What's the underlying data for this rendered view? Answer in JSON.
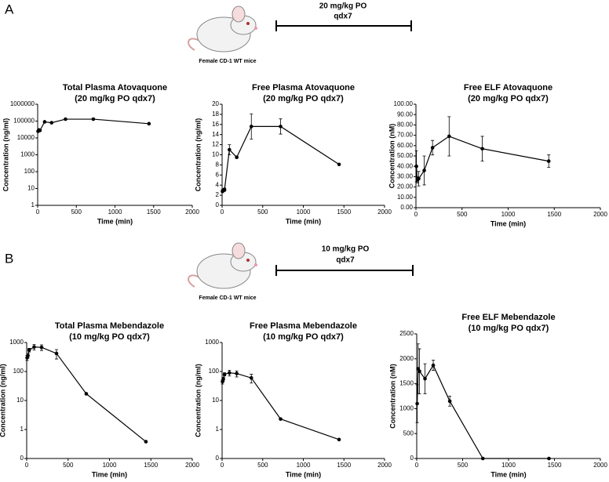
{
  "panels": [
    {
      "label": "A",
      "dose": "20 mg/kg PO",
      "schedule": "qdx7",
      "mouse_caption": "Female CD-1 WT mice"
    },
    {
      "label": "B",
      "dose": "10 mg/kg PO",
      "schedule": "qdx7",
      "mouse_caption": "Female CD-1 WT mice"
    }
  ],
  "chart_data": [
    {
      "type": "line",
      "title": "Total Plasma Atovaquone",
      "subtitle": "(20 mg/kg PO qdx7)",
      "xlabel": "Time (min)",
      "ylabel": "Concentration (ng/ml)",
      "log_y": true,
      "color": "#000000",
      "x": [
        5,
        15,
        30,
        90,
        180,
        360,
        720,
        1440
      ],
      "values": [
        25000,
        30000,
        28000,
        90000,
        80000,
        130000,
        130000,
        70000
      ],
      "xlim": [
        0,
        2000
      ],
      "xticks": [
        0,
        500,
        1000,
        1500,
        2000
      ],
      "ylim": [
        1,
        1000000
      ],
      "yticks": [
        1,
        10,
        100,
        1000,
        10000,
        100000,
        1000000
      ]
    },
    {
      "type": "line",
      "title": "Free Plasma Atovaquone",
      "subtitle": "(20 mg/kg PO qdx7)",
      "xlabel": "Time (min)",
      "ylabel": "Concentration (ng/ml)",
      "log_y": false,
      "color": "#000000",
      "x": [
        5,
        15,
        30,
        90,
        180,
        360,
        720,
        1440
      ],
      "values": [
        2.8,
        3.0,
        3.1,
        11,
        9.5,
        15.6,
        15.6,
        8.1
      ],
      "errors": [
        0.3,
        0.3,
        0.3,
        1,
        0.2,
        2.5,
        1.5,
        0.1
      ],
      "xlim": [
        0,
        2000
      ],
      "xticks": [
        0,
        500,
        1000,
        1500,
        2000
      ],
      "ylim": [
        0,
        20
      ],
      "yticks": [
        0,
        2,
        4,
        6,
        8,
        10,
        12,
        14,
        16,
        18,
        20
      ]
    },
    {
      "type": "line",
      "title": "Free ELF Atovaquone",
      "subtitle": "(20 mg/kg PO qdx7)",
      "xlabel": "Time (min)",
      "ylabel": "Concentration (nM)",
      "log_y": false,
      "color": "#000000",
      "x": [
        5,
        15,
        30,
        90,
        180,
        360,
        720,
        1440
      ],
      "values": [
        40,
        27,
        28,
        36,
        58,
        69,
        57,
        45
      ],
      "errors": [
        15,
        3,
        7,
        14,
        7,
        19,
        12,
        6
      ],
      "xlim": [
        0,
        2000
      ],
      "xticks": [
        0,
        500,
        1000,
        1500,
        2000
      ],
      "ylim": [
        0,
        100
      ],
      "yticks": [
        {
          "value": 0,
          "label": "0.00"
        },
        {
          "value": 10,
          "label": "10.00"
        },
        {
          "value": 20,
          "label": "20.00"
        },
        {
          "value": 30,
          "label": "30.00"
        },
        {
          "value": 40,
          "label": "40.00"
        },
        {
          "value": 50,
          "label": "50.00"
        },
        {
          "value": 60,
          "label": "60.00"
        },
        {
          "value": 70,
          "label": "70.00"
        },
        {
          "value": 80,
          "label": "80.00"
        },
        {
          "value": 90,
          "label": "90.00"
        },
        {
          "value": 100,
          "label": "100.00"
        }
      ]
    },
    {
      "type": "line",
      "title": "Total Plasma Mebendazole",
      "subtitle": "(10 mg/kg PO qdx7)",
      "xlabel": "Time (min)",
      "ylabel": "Concentration (ng/ml)",
      "log_y": true,
      "color": "#000000",
      "x": [
        5,
        15,
        30,
        90,
        180,
        360,
        720,
        1440
      ],
      "values": [
        300,
        350,
        550,
        700,
        680,
        420,
        17,
        0.38
      ],
      "errors": [
        60,
        60,
        80,
        150,
        150,
        150,
        1,
        0.02
      ],
      "xlim": [
        0,
        2000
      ],
      "xticks": [
        0,
        500,
        1000,
        1500,
        2000
      ],
      "ylim": [
        0.1,
        1000
      ],
      "yticks": [
        {
          "value": 0.1,
          "label": "0"
        },
        1,
        10,
        100,
        1000
      ]
    },
    {
      "type": "line",
      "title": "Free Plasma Mebendazole",
      "subtitle": "(10 mg/kg PO qdx7)",
      "xlabel": "Time (min)",
      "ylabel": "Concentration (ng/ml)",
      "log_y": true,
      "color": "#000000",
      "x": [
        5,
        15,
        30,
        90,
        180,
        360,
        720,
        1440
      ],
      "values": [
        45,
        55,
        80,
        90,
        85,
        60,
        2.3,
        0.45
      ],
      "errors": [
        8,
        8,
        10,
        20,
        20,
        20,
        0.1,
        0.02
      ],
      "xlim": [
        0,
        2000
      ],
      "xticks": [
        0,
        500,
        1000,
        1500,
        2000
      ],
      "ylim": [
        0.1,
        1000
      ],
      "yticks": [
        {
          "value": 0.1,
          "label": "0"
        },
        1,
        10,
        100,
        1000
      ]
    },
    {
      "type": "line",
      "title": "Free ELF Mebendazole",
      "subtitle": "(10 mg/kg PO qdx7)",
      "xlabel": "Time (min)",
      "ylabel": "Concentration (nM)",
      "log_y": false,
      "color": "#000000",
      "x": [
        5,
        15,
        30,
        90,
        180,
        360,
        720,
        1440
      ],
      "values": [
        1100,
        1800,
        1750,
        1600,
        1870,
        1150,
        0,
        0
      ],
      "errors": [
        380,
        500,
        450,
        300,
        100,
        100,
        5,
        5
      ],
      "xlim": [
        0,
        2000
      ],
      "xticks": [
        0,
        500,
        1000,
        1500,
        2000
      ],
      "ylim": [
        0,
        2500
      ],
      "yticks": [
        0,
        500,
        1000,
        1500,
        2000,
        2500
      ]
    }
  ]
}
